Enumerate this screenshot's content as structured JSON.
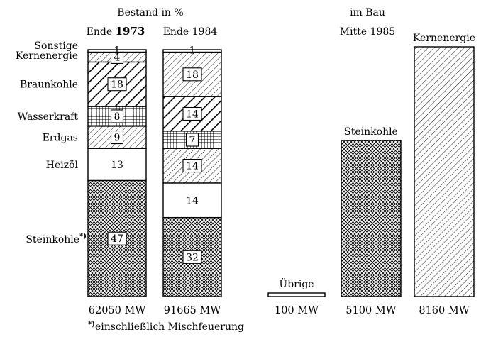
{
  "chart_data": {
    "type": "bar",
    "header_left": "Bestand in %",
    "header_right_line1": "im Bau",
    "header_right_line2": "Mitte 1985",
    "footnote_marker": "*)",
    "footnote_text": "einschließlich Mischfeuerung",
    "stacks": [
      {
        "label": "Ende 1973",
        "total": "62050 MW",
        "segments": [
          {
            "name": "Steinkohle*)",
            "value": 47,
            "pattern": "crosshatch"
          },
          {
            "name": "Heizöl",
            "value": 13,
            "pattern": "plain"
          },
          {
            "name": "Erdgas",
            "value": 9,
            "pattern": "diag-fine"
          },
          {
            "name": "Wasserkraft",
            "value": 8,
            "pattern": "grid"
          },
          {
            "name": "Braunkohle",
            "value": 18,
            "pattern": "diag-bold"
          },
          {
            "name": "Kernenergie",
            "value": 4,
            "pattern": "diag-fine"
          },
          {
            "name": "Sonstige",
            "value": 1,
            "pattern": "plain"
          }
        ]
      },
      {
        "label": "Ende 1984",
        "total": "91665 MW",
        "segments": [
          {
            "name": "Steinkohle",
            "value": 32,
            "pattern": "crosshatch"
          },
          {
            "name": "Heizöl",
            "value": 14,
            "pattern": "plain"
          },
          {
            "name": "Erdgas",
            "value": 14,
            "pattern": "diag-fine"
          },
          {
            "name": "Wasserkraft",
            "value": 7,
            "pattern": "grid"
          },
          {
            "name": "Braunkohle",
            "value": 14,
            "pattern": "diag-bold"
          },
          {
            "name": "Kernenergie",
            "value": 18,
            "pattern": "diag-fine"
          },
          {
            "name": "Sonstige",
            "value": 1,
            "pattern": "plain"
          }
        ]
      }
    ],
    "category_labels": [
      "Sonstige",
      "Kernenergie",
      "Braunkohle",
      "Wasserkraft",
      "Erdgas",
      "Heizöl",
      "Steinkohle"
    ],
    "construction": [
      {
        "name": "Übrige",
        "mw": 100,
        "total": "100 MW",
        "pattern": "plain"
      },
      {
        "name": "Steinkohle",
        "mw": 5100,
        "total": "5100 MW",
        "pattern": "crosshatch"
      },
      {
        "name": "Kernenergie",
        "mw": 8160,
        "total": "8160 MW",
        "pattern": "diag-fine"
      }
    ]
  }
}
